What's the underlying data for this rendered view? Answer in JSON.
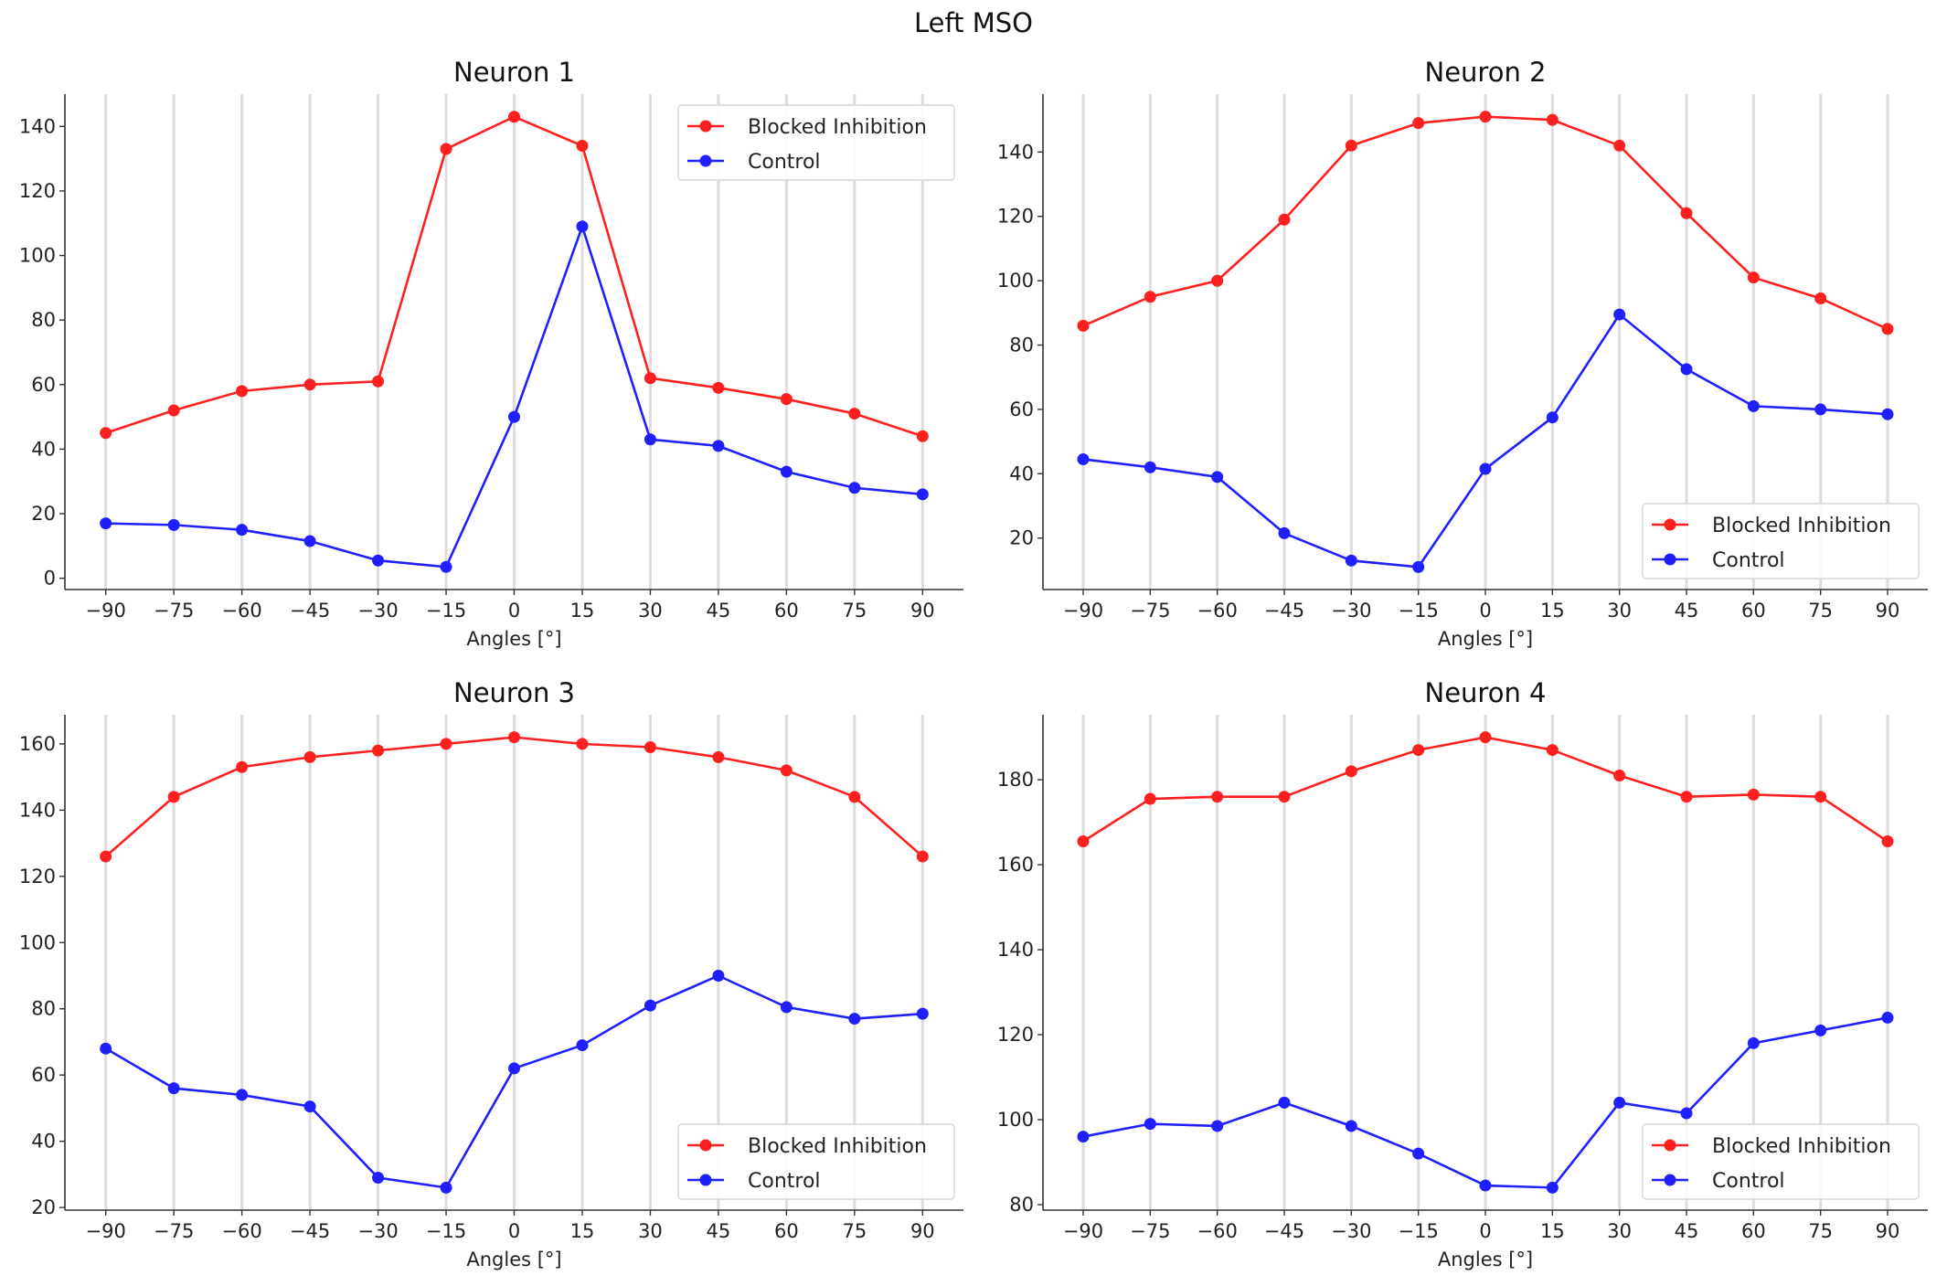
{
  "chart_data": {
    "suptitle": "Left MSO",
    "colors": {
      "Blocked Inhibition": "#ff1f1f",
      "Control": "#1f1fff"
    },
    "panels": [
      {
        "type": "line",
        "title": "Neuron 1",
        "xlabel": "Angles [°]",
        "ylabel": "",
        "x": [
          -90,
          -75,
          -60,
          -45,
          -30,
          -15,
          0,
          15,
          30,
          45,
          60,
          75,
          90
        ],
        "xticks": [
          "−90",
          "−75",
          "−60",
          "−45",
          "−30",
          "−15",
          "0",
          "15",
          "30",
          "45",
          "60",
          "75",
          "90"
        ],
        "yticks": [
          0,
          20,
          40,
          60,
          80,
          100,
          120,
          140
        ],
        "ylim": [
          -3.5,
          150
        ],
        "xlim": [
          -99,
          99
        ],
        "grid": "vertical",
        "legend": "upper right",
        "series": [
          {
            "name": "Blocked Inhibition",
            "values": [
              45,
              52,
              58,
              60,
              61,
              133,
              143,
              134,
              62,
              59,
              55.5,
              51,
              44
            ]
          },
          {
            "name": "Control",
            "values": [
              17,
              16.5,
              15,
              11.5,
              5.5,
              3.5,
              50,
              109,
              43,
              41,
              33,
              28,
              26
            ]
          }
        ]
      },
      {
        "type": "line",
        "title": "Neuron 2",
        "xlabel": "Angles [°]",
        "ylabel": "",
        "x": [
          -90,
          -75,
          -60,
          -45,
          -30,
          -15,
          0,
          15,
          30,
          45,
          60,
          75,
          90
        ],
        "xticks": [
          "−90",
          "−75",
          "−60",
          "−45",
          "−30",
          "−15",
          "0",
          "15",
          "30",
          "45",
          "60",
          "75",
          "90"
        ],
        "yticks": [
          20,
          40,
          60,
          80,
          100,
          120,
          140
        ],
        "ylim": [
          4,
          158
        ],
        "xlim": [
          -99,
          99
        ],
        "grid": "vertical",
        "legend": "lower right",
        "series": [
          {
            "name": "Blocked Inhibition",
            "values": [
              86,
              95,
              100,
              119,
              142,
              149,
              151,
              150,
              142,
              121,
              101,
              94.5,
              85
            ]
          },
          {
            "name": "Control",
            "values": [
              44.5,
              42,
              39,
              21.5,
              13,
              11,
              41.5,
              57.5,
              89.5,
              72.5,
              61,
              60,
              58.5
            ]
          }
        ]
      },
      {
        "type": "line",
        "title": "Neuron 3",
        "xlabel": "Angles [°]",
        "ylabel": "",
        "x": [
          -90,
          -75,
          -60,
          -45,
          -30,
          -15,
          0,
          15,
          30,
          45,
          60,
          75,
          90
        ],
        "xticks": [
          "−90",
          "−75",
          "−60",
          "−45",
          "−30",
          "−15",
          "0",
          "15",
          "30",
          "45",
          "60",
          "75",
          "90"
        ],
        "yticks": [
          20,
          40,
          60,
          80,
          100,
          120,
          140,
          160
        ],
        "ylim": [
          19.2,
          168.8
        ],
        "xlim": [
          -99,
          99
        ],
        "grid": "vertical",
        "legend": "lower right",
        "series": [
          {
            "name": "Blocked Inhibition",
            "values": [
              126,
              144,
              153,
              156,
              158,
              160,
              162,
              160,
              159,
              156,
              152,
              144,
              126
            ]
          },
          {
            "name": "Control",
            "values": [
              68,
              56,
              54,
              50.5,
              29,
              26,
              62,
              69,
              81,
              90,
              80.5,
              77,
              78.5
            ]
          }
        ]
      },
      {
        "type": "line",
        "title": "Neuron 4",
        "xlabel": "Angles [°]",
        "ylabel": "",
        "x": [
          -90,
          -75,
          -60,
          -45,
          -30,
          -15,
          0,
          15,
          30,
          45,
          60,
          75,
          90
        ],
        "xticks": [
          "−90",
          "−75",
          "−60",
          "−45",
          "−30",
          "−15",
          "0",
          "15",
          "30",
          "45",
          "60",
          "75",
          "90"
        ],
        "yticks": [
          80,
          100,
          120,
          140,
          160,
          180
        ],
        "ylim": [
          78.7,
          195.3
        ],
        "xlim": [
          -99,
          99
        ],
        "grid": "vertical",
        "legend": "lower right",
        "series": [
          {
            "name": "Blocked Inhibition",
            "values": [
              165.5,
              175.5,
              176,
              176,
              182,
              187,
              190,
              187,
              181,
              176,
              176.5,
              176,
              165.5
            ]
          },
          {
            "name": "Control",
            "values": [
              96,
              99,
              98.5,
              104,
              98.5,
              92,
              84.5,
              84,
              104,
              101.5,
              118,
              121,
              124
            ]
          }
        ]
      }
    ]
  }
}
